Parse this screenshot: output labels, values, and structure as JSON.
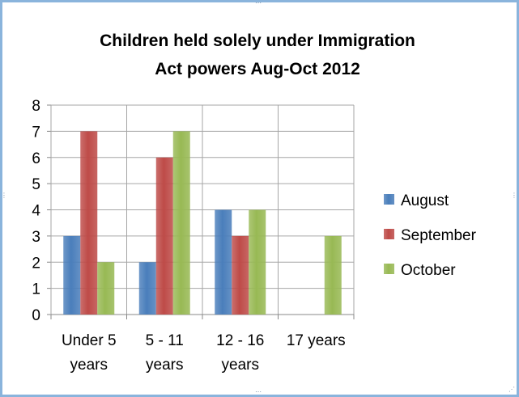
{
  "chart_data": {
    "type": "bar",
    "title_lines": [
      "Children held solely under Immigration",
      "Act powers Aug-Oct 2012"
    ],
    "categories": [
      [
        "Under 5",
        "years"
      ],
      [
        "5 - 11",
        "years"
      ],
      [
        "12 - 16",
        "years"
      ],
      [
        "17 years"
      ]
    ],
    "series": [
      {
        "name": "August",
        "values": [
          3,
          2,
          4,
          0
        ],
        "color": "#4a7ebb"
      },
      {
        "name": "September",
        "values": [
          7,
          6,
          3,
          0
        ],
        "color": "#be4b48"
      },
      {
        "name": "October",
        "values": [
          2,
          7,
          4,
          3
        ],
        "color": "#98b954"
      }
    ],
    "ylim": [
      0,
      8
    ],
    "yticks": [
      "0",
      "1",
      "2",
      "3",
      "4",
      "5",
      "6",
      "7",
      "8"
    ],
    "grid": true,
    "legend": "right"
  }
}
